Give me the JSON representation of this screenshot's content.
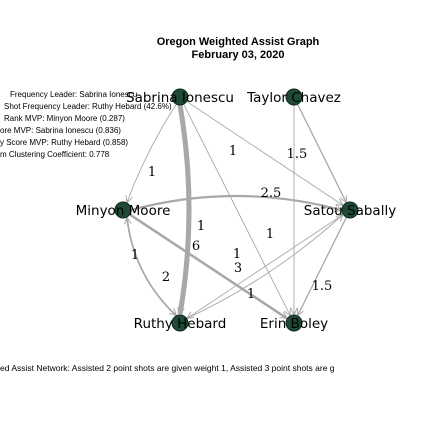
{
  "title": "Oregon Weighted Assist Graph",
  "subtitle": "February 03, 2020",
  "stats": [
    "Frequency Leader: Sabrina Ionescu",
    "Shot Frequency Leader: Ruthy Hebard (42.6%)",
    "Rank MVP: Minyon Moore (0.287)",
    "ore MVP: Sabrina Ionescu (0.836)",
    "y Score MVP: Ruthy Hebard (0.858)",
    "m Clustering Coefficient: 0.778"
  ],
  "caption": "ed Assist Network: Assisted 2 point shots are given weight 1, Assisted 3 point shots are g",
  "colors": {
    "node_fill": "#1e4a36",
    "node_stroke": "#0f2a1e",
    "edge": "#a8a8a8"
  },
  "nodes": [
    {
      "id": "sabrina",
      "label": "Sabrina Ionescu"
    },
    {
      "id": "taylor",
      "label": "Taylor Chavez"
    },
    {
      "id": "minyon",
      "label": "Minyon Moore"
    },
    {
      "id": "satou",
      "label": "Satou Sabally"
    },
    {
      "id": "ruthy",
      "label": "Ruthy Hebard"
    },
    {
      "id": "erin",
      "label": "Erin Boley"
    }
  ],
  "edges": [
    {
      "from": "sabrina",
      "to": "ruthy",
      "weight": "6"
    },
    {
      "from": "sabrina",
      "to": "satou",
      "weight": "1"
    },
    {
      "from": "sabrina",
      "to": "erin",
      "weight": "1"
    },
    {
      "from": "sabrina",
      "to": "minyon",
      "weight": "1"
    },
    {
      "from": "taylor",
      "to": "satou",
      "weight": "1.5"
    },
    {
      "from": "taylor",
      "to": "erin",
      "weight": "1"
    },
    {
      "from": "minyon",
      "to": "satou",
      "weight": "2.5"
    },
    {
      "from": "minyon",
      "to": "ruthy",
      "weight": "1"
    },
    {
      "from": "minyon",
      "to": "erin",
      "weight": "3"
    },
    {
      "from": "satou",
      "to": "ruthy",
      "weight": "1"
    },
    {
      "from": "satou",
      "to": "erin",
      "weight": "1.5"
    },
    {
      "from": "ruthy",
      "to": "minyon",
      "weight": "2"
    },
    {
      "from": "ruthy",
      "to": "satou",
      "weight": "1"
    }
  ]
}
